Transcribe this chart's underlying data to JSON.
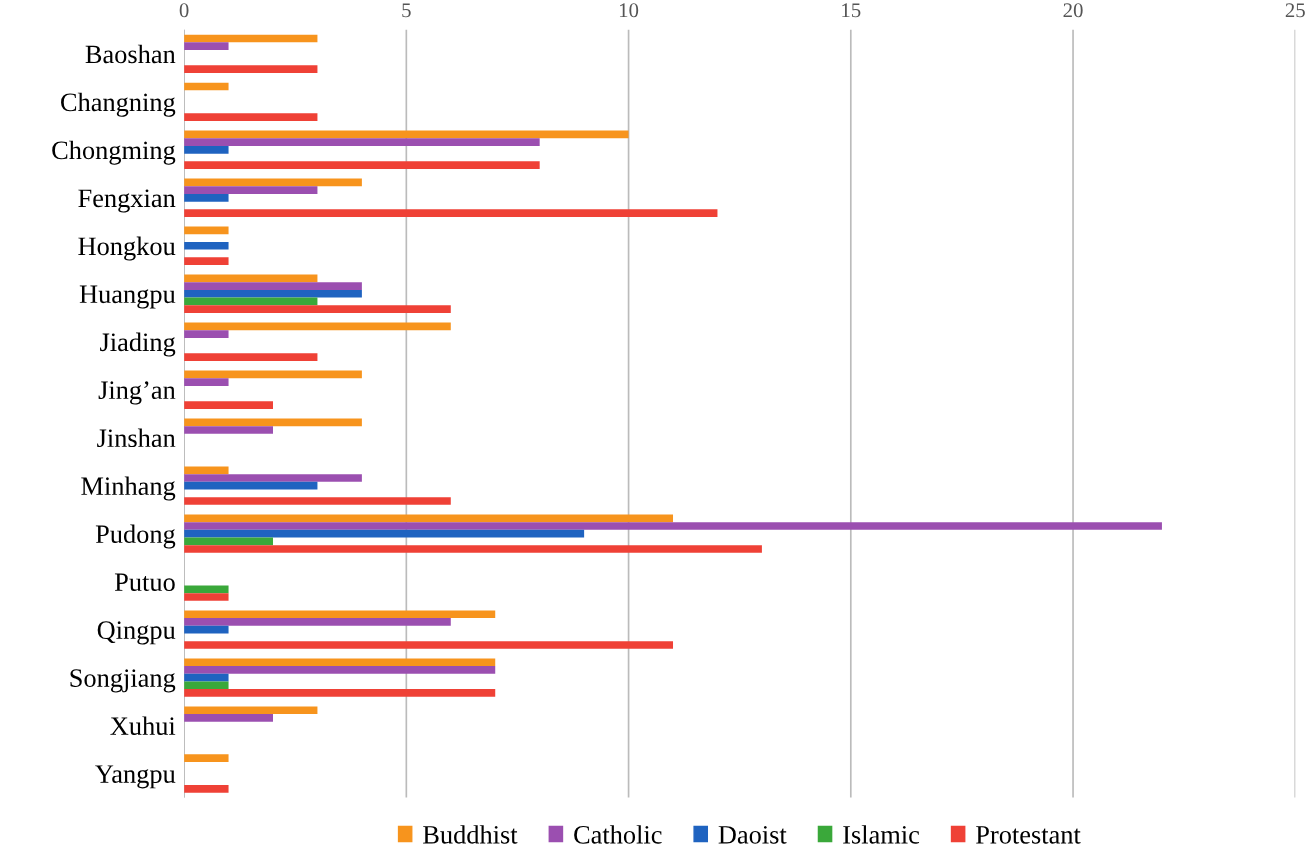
{
  "chart_data": {
    "type": "bar",
    "orientation": "horizontal",
    "categories": [
      "Baoshan",
      "Changning",
      "Chongming",
      "Fengxian",
      "Hongkou",
      "Huangpu",
      "Jiading",
      "Jing’an",
      "Jinshan",
      "Minhang",
      "Pudong",
      "Putuo",
      "Qingpu",
      "Songjiang",
      "Xuhui",
      "Yangpu"
    ],
    "series": [
      {
        "name": "Buddhist",
        "color": "#f7941d",
        "values": [
          3,
          1,
          10,
          4,
          1,
          3,
          6,
          4,
          4,
          1,
          11,
          0,
          7,
          7,
          3,
          1
        ]
      },
      {
        "name": "Catholic",
        "color": "#9b4fb0",
        "values": [
          1,
          0,
          8,
          3,
          0,
          4,
          1,
          1,
          2,
          4,
          22,
          0,
          6,
          7,
          2,
          0
        ]
      },
      {
        "name": "Daoist",
        "color": "#1f63c0",
        "values": [
          0,
          0,
          1,
          1,
          1,
          4,
          0,
          0,
          0,
          3,
          9,
          0,
          1,
          1,
          0,
          0
        ]
      },
      {
        "name": "Islamic",
        "color": "#3aa83a",
        "values": [
          0,
          0,
          0,
          0,
          0,
          3,
          0,
          0,
          0,
          0,
          2,
          1,
          0,
          1,
          0,
          0
        ]
      },
      {
        "name": "Protestant",
        "color": "#ef4136",
        "values": [
          3,
          3,
          8,
          12,
          1,
          6,
          3,
          2,
          0,
          6,
          13,
          1,
          11,
          7,
          0,
          1
        ]
      }
    ],
    "xlim": [
      0,
      25
    ],
    "xticks": [
      0,
      5,
      10,
      15,
      20,
      25
    ],
    "grid": "x",
    "legend": "bottom"
  }
}
